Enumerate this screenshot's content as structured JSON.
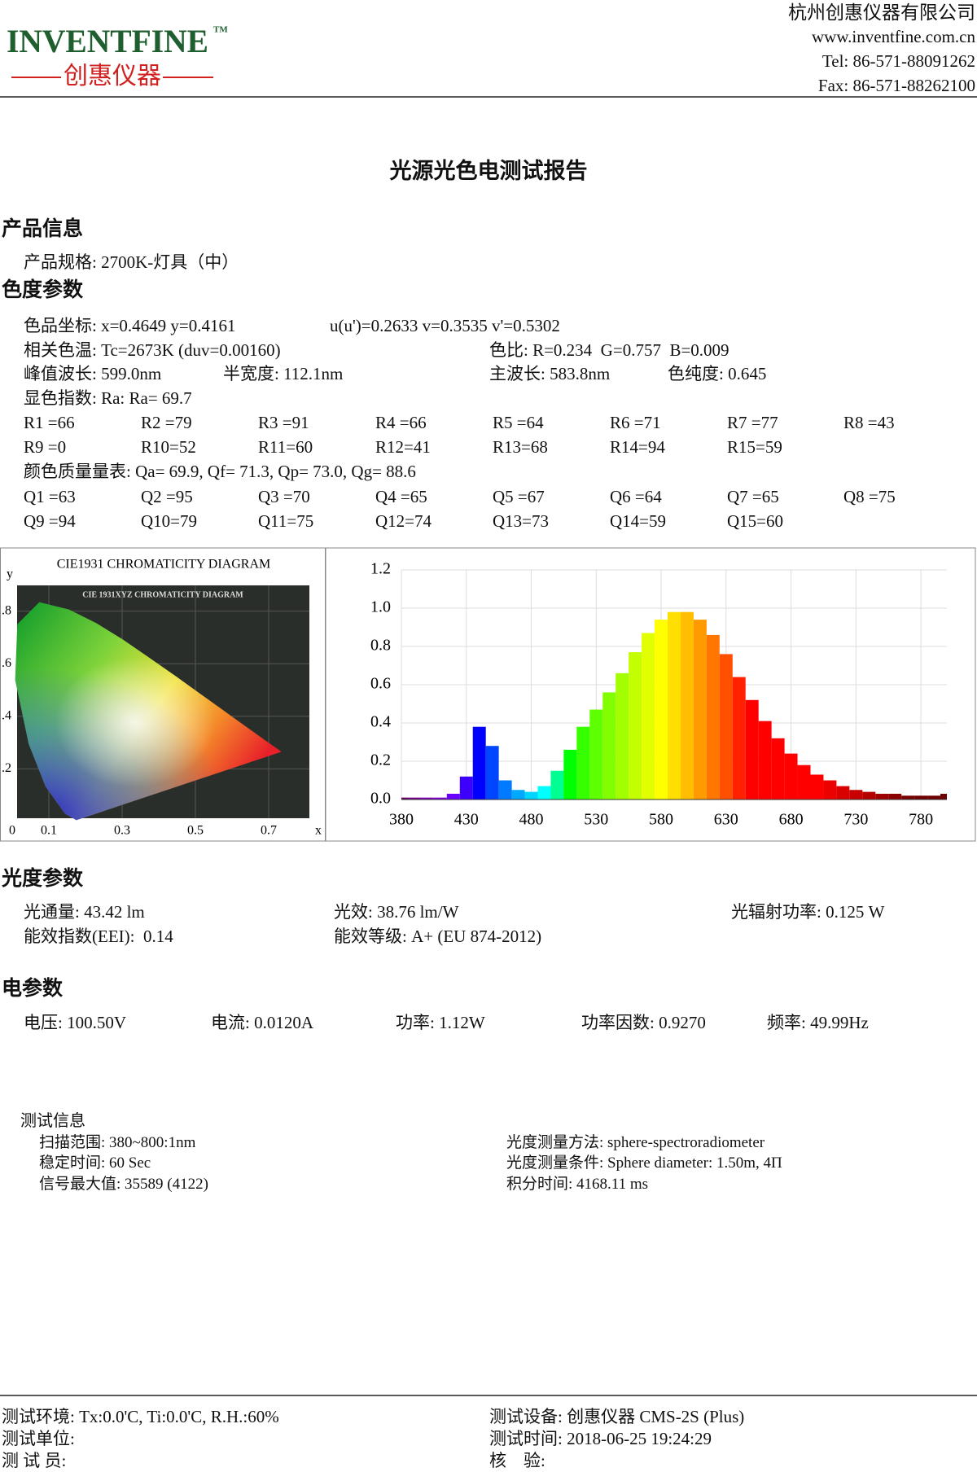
{
  "header": {
    "logo": "INVENTFINE",
    "logo_tm": "TM",
    "logo_subtitle": "创惠仪器",
    "company": "杭州创惠仪器有限公司",
    "website": "www.inventfine.com.cn",
    "tel": "Tel: 86-571-88091262",
    "fax": "Fax: 86-571-88262100"
  },
  "title": "光源光色电测试报告",
  "product_info": {
    "heading": "产品信息",
    "spec": "产品规格: 2700K-灯具（中）"
  },
  "colorimetry": {
    "heading": "色度参数",
    "coords": "色品坐标: x=0.4649 y=0.4161",
    "uv": "u(u')=0.2633 v=0.3535 v'=0.5302",
    "cct": "相关色温: Tc=2673K (duv=0.00160)",
    "color_ratio": "色比: R=0.234  G=0.757  B=0.009",
    "peak": "峰值波长: 599.0nm",
    "fwhm": "半宽度: 112.1nm",
    "dominant": "主波长: 583.8nm",
    "purity": "色纯度: 0.645",
    "cri": "显色指数: Ra: Ra= 69.7",
    "r_values": [
      "R1 =66",
      "R2 =79",
      "R3 =91",
      "R4 =66",
      "R5 =64",
      "R6 =71",
      "R7 =77",
      "R8 =43",
      "R9 =0",
      "R10=52",
      "R11=60",
      "R12=41",
      "R13=68",
      "R14=94",
      "R15=59"
    ],
    "cqs": "颜色质量量表: Qa= 69.9, Qf= 71.3, Qp= 73.0, Qg= 88.6",
    "q_values": [
      "Q1 =63",
      "Q2 =95",
      "Q3 =70",
      "Q4 =65",
      "Q5 =67",
      "Q6 =64",
      "Q7 =65",
      "Q8 =75",
      "Q9 =94",
      "Q10=79",
      "Q11=75",
      "Q12=74",
      "Q13=73",
      "Q14=59",
      "Q15=60"
    ]
  },
  "cie_diagram": {
    "title": "CIE1931 CHROMATICITY DIAGRAM",
    "inner_title": "CIE 1931XYZ CHROMATICITY DIAGRAM",
    "xlabel": "x",
    "ylabel": "y",
    "xticks": [
      0,
      0.1,
      0.3,
      0.5,
      0.7
    ],
    "yticks": [
      {
        "value": 0.8,
        "label": ".8"
      },
      {
        "value": 0.6,
        "label": ".6"
      },
      {
        "value": 0.4,
        "label": ".4"
      },
      {
        "value": 0.2,
        "label": ".2"
      }
    ]
  },
  "chart_data": {
    "type": "spectrum",
    "x": [
      380,
      390,
      400,
      410,
      420,
      430,
      440,
      450,
      460,
      470,
      480,
      490,
      500,
      510,
      520,
      530,
      540,
      550,
      560,
      570,
      580,
      590,
      600,
      610,
      620,
      630,
      640,
      650,
      660,
      670,
      680,
      690,
      700,
      710,
      720,
      730,
      740,
      750,
      760,
      770,
      780,
      790,
      800
    ],
    "values": [
      0.01,
      0.01,
      0.01,
      0.01,
      0.03,
      0.12,
      0.38,
      0.28,
      0.1,
      0.05,
      0.04,
      0.07,
      0.15,
      0.26,
      0.38,
      0.47,
      0.56,
      0.66,
      0.77,
      0.87,
      0.94,
      0.98,
      0.98,
      0.94,
      0.86,
      0.76,
      0.64,
      0.52,
      0.41,
      0.32,
      0.24,
      0.18,
      0.13,
      0.1,
      0.07,
      0.05,
      0.04,
      0.03,
      0.03,
      0.02,
      0.02,
      0.02,
      0.03
    ],
    "xlim": [
      380,
      800
    ],
    "xticks": [
      380,
      430,
      480,
      530,
      580,
      630,
      680,
      730,
      780
    ],
    "ylim": [
      0,
      1.2
    ],
    "yticks": [
      {
        "value": 0,
        "label": "0.0"
      },
      0.2,
      0.4,
      0.6,
      0.8,
      {
        "value": 1,
        "label": "1.0"
      },
      1.2
    ],
    "grid": true
  },
  "photometry": {
    "heading": "光度参数",
    "flux": "光通量: 43.42 lm",
    "efficacy": "光效: 38.76 lm/W",
    "radiant_power": "光辐射功率: 0.125 W",
    "eei": "能效指数(EEI):  0.14",
    "energy_class": "能效等级: A+ (EU 874-2012)"
  },
  "electrical": {
    "heading": "电参数",
    "voltage": "电压: 100.50V",
    "current": "电流: 0.0120A",
    "power": "功率: 1.12W",
    "power_factor": "功率因数: 0.9270",
    "frequency": "频率: 49.99Hz"
  },
  "test_info": {
    "heading": "测试信息",
    "scan_range": "扫描范围: 380~800:1nm",
    "stable_time": "稳定时间: 60 Sec",
    "signal_max": "信号最大值: 35589 (4122)",
    "method": "光度测量方法: sphere-spectroradiometer",
    "condition": "光度测量条件: Sphere diameter: 1.50m, 4Π",
    "integration": "积分时间: 4168.11 ms"
  },
  "footer": {
    "environment": "测试环境: Tx:0.0'C, Ti:0.0'C, R.H.:60%",
    "equipment": "测试设备: 创惠仪器 CMS-2S (Plus)",
    "unit": "测试单位:",
    "time": "测试时间: 2018-06-25 19:24:29",
    "tester": "测 试 员:",
    "reviewer": "核    验:"
  }
}
